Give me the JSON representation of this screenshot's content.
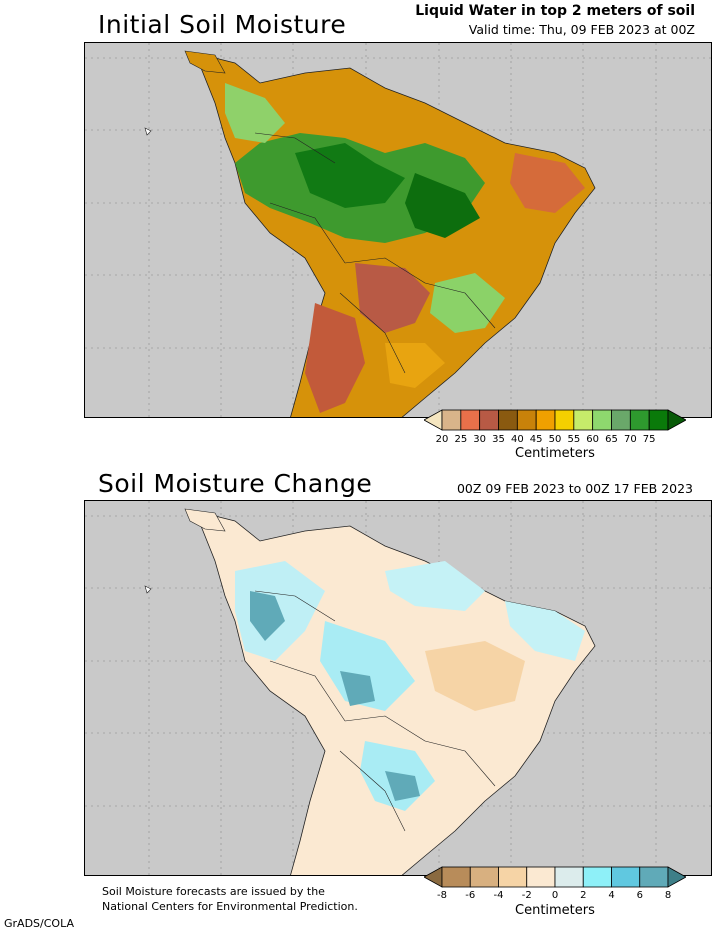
{
  "top": {
    "title": "Initial Soil Moisture",
    "subtitle": "Liquid Water in top 2 meters of soil",
    "valid": "Valid time: Thu, 09 FEB 2023 at 00Z",
    "colorbar": {
      "ticks": [
        "20",
        "25",
        "30",
        "35",
        "40",
        "45",
        "50",
        "55",
        "60",
        "65",
        "70",
        "75"
      ],
      "colors": [
        "#f5e6c0",
        "#d9b48a",
        "#e8704a",
        "#b85a45",
        "#8a5a10",
        "#c8820a",
        "#f0a000",
        "#f5d000",
        "#c6ec6a",
        "#8ed86e",
        "#6aa86a",
        "#2e9a2e",
        "#0a7a0a",
        "#085a08"
      ],
      "unit": "Centimeters"
    }
  },
  "bottom": {
    "title": "Soil Moisture Change",
    "period": "00Z 09 FEB 2023 to 00Z 17 FEB 2023",
    "colorbar": {
      "ticks": [
        "-8",
        "-6",
        "-4",
        "-2",
        "0",
        "2",
        "4",
        "6",
        "8"
      ],
      "colors": [
        "#8a6a40",
        "#b88c5a",
        "#d8b080",
        "#f6d4a6",
        "#fbe9d2",
        "#dcecec",
        "#8ef0f8",
        "#60c8e0",
        "#60aab8",
        "#3e7f88"
      ],
      "unit": "Centimeters"
    }
  },
  "footer": {
    "line1": "Soil Moisture forecasts are issued by the",
    "line2": "National Centers for Environmental Prediction.",
    "credit": "GrADS/COLA"
  }
}
